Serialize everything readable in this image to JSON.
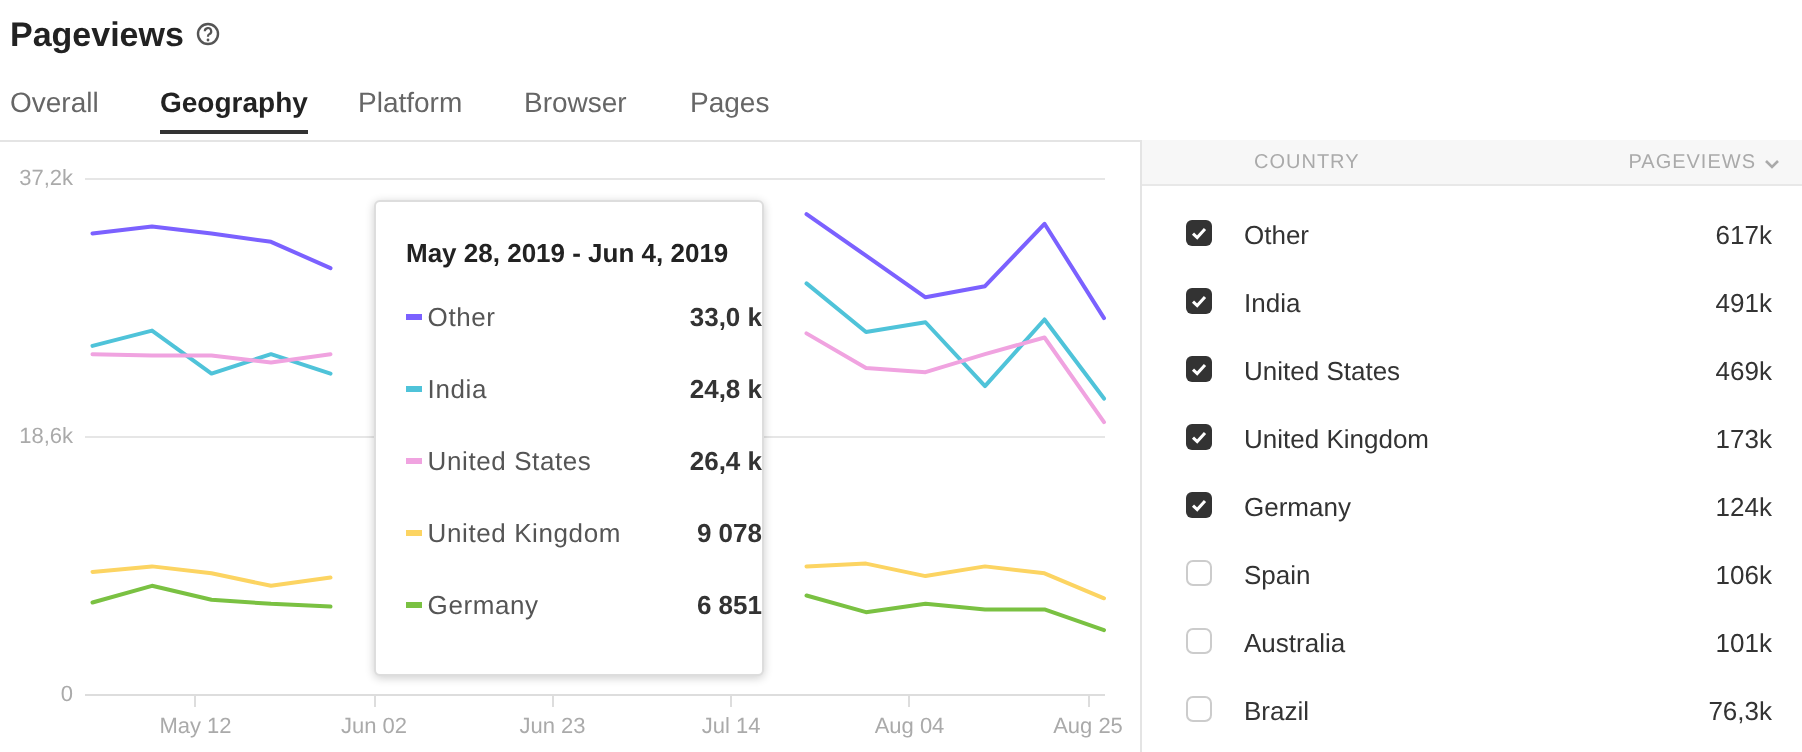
{
  "chart_data": [
    {
      "type": "line",
      "title": "Pageviews",
      "annotations": [
        "Overall",
        "Geography",
        "Platform",
        "Browser",
        "Pages",
        "May 28, 2019 - Jun 4, 2019",
        "33,0 k",
        "24,8 k",
        "26,4 k",
        "9 078",
        "6 851"
      ],
      "x": [
        "2019-04-30",
        "2019-05-07",
        "2019-05-14",
        "2019-05-21",
        "2019-05-28",
        "2019-06-04",
        "2019-06-11",
        "2019-06-18",
        "2019-06-25",
        "2019-07-02",
        "2019-07-09",
        "2019-07-16",
        "2019-07-23",
        "2019-07-30",
        "2019-08-06",
        "2019-08-13",
        "2019-08-20",
        "2019-08-27"
      ],
      "series": [
        {
          "name": "Other",
          "color": "#7b61ff",
          "values": [
            33200,
            33700,
            33200,
            32600,
            30700,
            null,
            null,
            null,
            null,
            null,
            null,
            null,
            34600,
            31600,
            28600,
            29400,
            33900,
            27100
          ]
        },
        {
          "name": "India",
          "color": "#4fc3d9",
          "values": [
            25100,
            26200,
            23100,
            24500,
            23100,
            null,
            null,
            null,
            null,
            null,
            null,
            null,
            29600,
            26100,
            26800,
            22200,
            27000,
            21300
          ]
        },
        {
          "name": "United States",
          "color": "#f0a3e0",
          "values": [
            24500,
            24400,
            24400,
            23900,
            24500,
            null,
            null,
            null,
            null,
            null,
            null,
            null,
            26000,
            23500,
            23200,
            24500,
            25700,
            19600
          ]
        },
        {
          "name": "United Kingdom",
          "color": "#fcd462",
          "values": [
            8800,
            9200,
            8700,
            7800,
            8400,
            null,
            null,
            null,
            null,
            null,
            null,
            null,
            9200,
            9400,
            8500,
            9200,
            8700,
            6900
          ]
        },
        {
          "name": "Germany",
          "color": "#7ac142",
          "values": [
            6600,
            7800,
            6800,
            6500,
            6300,
            null,
            null,
            null,
            null,
            null,
            null,
            null,
            7100,
            5900,
            6500,
            6100,
            6100,
            4600
          ]
        }
      ],
      "xlim": [
        "2019-04-29",
        "2019-08-27"
      ],
      "xticks": [
        {
          "value": "2019-05-12",
          "label": "May 12"
        },
        {
          "value": "2019-06-02",
          "label": "Jun 02"
        },
        {
          "value": "2019-06-23",
          "label": "Jun 23"
        },
        {
          "value": "2019-07-14",
          "label": "Jul 14"
        },
        {
          "value": "2019-08-04",
          "label": "Aug 04"
        },
        {
          "value": "2019-08-25",
          "label": "Aug 25"
        }
      ],
      "ylim": [
        0,
        37200
      ],
      "yticks": [
        0,
        {
          "value": 18600,
          "label": "18,6k"
        },
        {
          "value": 37200,
          "label": "37,2k"
        }
      ],
      "grid": "y",
      "legend": "bottom left",
      "line_style": "solid",
      "marker": "none"
    },
    {
      "type": "other",
      "xlabel": "COUNTRY",
      "ylabel": "PAGEVIEWS",
      "categories": [
        "Other",
        "India",
        "United States",
        "United Kingdom",
        "Germany",
        "Spain",
        "Australia",
        "Brazil"
      ],
      "value_labels": [
        "617k",
        "491k",
        "469k",
        "173k",
        "124k",
        "106k",
        "101k",
        "76,3k"
      ]
    }
  ]
}
